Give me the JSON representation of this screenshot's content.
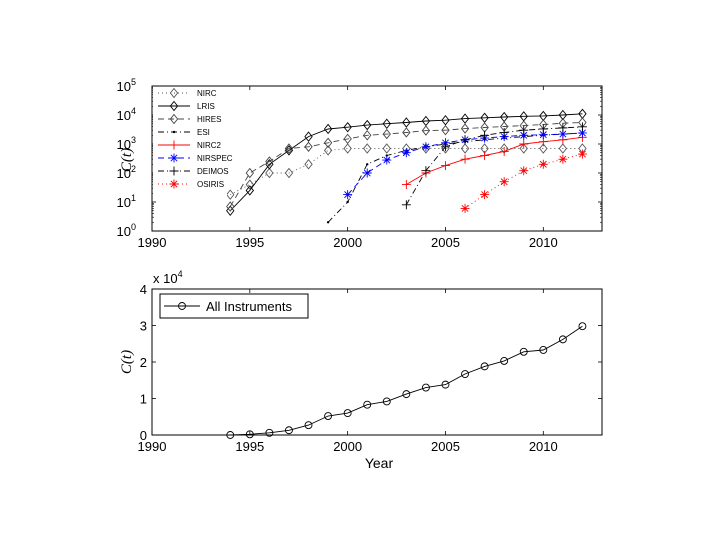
{
  "chart_data": [
    {
      "type": "line",
      "ylabel": "C(t)",
      "yscale": "log",
      "xlim": [
        1990,
        2013
      ],
      "ylim_exponents": [
        0,
        5
      ],
      "x_ticks": [
        "1990",
        "1995",
        "2000",
        "2005",
        "2010"
      ],
      "y_tick_base": "10",
      "y_tick_exponents": [
        "0",
        "1",
        "2",
        "3",
        "4",
        "5"
      ],
      "legend_position": "top-left",
      "series": [
        {
          "name": "NIRC",
          "color": "#555555",
          "marker": "diamond",
          "dash": "1,3",
          "x": [
            1994,
            1995,
            1996,
            1997,
            1998,
            1999,
            2000,
            2001,
            2002,
            2003,
            2004,
            2005,
            2006,
            2007,
            2008,
            2009,
            2010,
            2011,
            2012
          ],
          "y": [
            18,
            40,
            100,
            100,
            200,
            600,
            700,
            700,
            700,
            700,
            700,
            700,
            700,
            700,
            700,
            700,
            700,
            700,
            700
          ]
        },
        {
          "name": "LRIS",
          "color": "#000000",
          "marker": "diamond",
          "dash": "",
          "x": [
            1994,
            1995,
            1996,
            1997,
            1998,
            1999,
            2000,
            2001,
            2002,
            2003,
            2004,
            2005,
            2006,
            2007,
            2008,
            2009,
            2010,
            2011,
            2012
          ],
          "y": [
            5,
            25,
            200,
            600,
            1800,
            3300,
            3800,
            4500,
            5000,
            5500,
            6200,
            6600,
            7500,
            8000,
            8500,
            9000,
            9300,
            10000,
            11000
          ]
        },
        {
          "name": "HIRES",
          "color": "#444444",
          "marker": "diamond",
          "dash": "6,4",
          "x": [
            1994,
            1995,
            1996,
            1997,
            1998,
            1999,
            2000,
            2001,
            2002,
            2003,
            2004,
            2005,
            2006,
            2007,
            2008,
            2009,
            2010,
            2011,
            2012
          ],
          "y": [
            7,
            100,
            250,
            700,
            800,
            1100,
            1500,
            2000,
            2200,
            2500,
            2900,
            3000,
            3400,
            3700,
            4000,
            4300,
            4700,
            5200,
            5500
          ]
        },
        {
          "name": "ESI",
          "color": "#000000",
          "marker": "dot",
          "dash": "6,3,1,3",
          "x": [
            1999,
            2000,
            2001,
            2002,
            2003,
            2004,
            2005,
            2006,
            2007,
            2008,
            2009,
            2010,
            2011,
            2012
          ],
          "y": [
            2,
            10,
            200,
            400,
            600,
            800,
            1000,
            1200,
            1400,
            1600,
            1800,
            2000,
            2200,
            2400
          ]
        },
        {
          "name": "NIRC2",
          "color": "#ff0000",
          "marker": "plus",
          "dash": "",
          "x": [
            2003,
            2004,
            2005,
            2006,
            2007,
            2008,
            2009,
            2010,
            2011,
            2012
          ],
          "y": [
            40,
            100,
            180,
            300,
            400,
            550,
            1000,
            1200,
            1400,
            1700
          ]
        },
        {
          "name": "NIRSPEC",
          "color": "#0000ff",
          "marker": "star",
          "dash": "6,4",
          "x": [
            2000,
            2001,
            2002,
            2003,
            2004,
            2005,
            2006,
            2007,
            2008,
            2009,
            2010,
            2011,
            2012
          ],
          "y": [
            18,
            100,
            280,
            500,
            800,
            1100,
            1400,
            1600,
            1800,
            2000,
            2100,
            2200,
            2400
          ]
        },
        {
          "name": "DEIMOS",
          "color": "#000000",
          "marker": "plus",
          "dash": "6,3,1,3",
          "x": [
            2003,
            2004,
            2005,
            2006,
            2007,
            2008,
            2009,
            2010,
            2011,
            2012
          ],
          "y": [
            8,
            120,
            800,
            1400,
            2000,
            2500,
            3000,
            3300,
            3600,
            3900
          ]
        },
        {
          "name": "OSIRIS",
          "color": "#ff0000",
          "marker": "star",
          "dash": "1,3",
          "x": [
            2006,
            2007,
            2008,
            2009,
            2010,
            2011,
            2012
          ],
          "y": [
            6,
            18,
            50,
            120,
            200,
            300,
            450
          ]
        }
      ]
    },
    {
      "type": "line",
      "xlabel": "Year",
      "ylabel": "C(t)",
      "xlim": [
        1990,
        2013
      ],
      "ylim": [
        0,
        4
      ],
      "y_multiplier_text": "x 10",
      "y_multiplier_exponent": "4",
      "x_ticks": [
        "1990",
        "1995",
        "2000",
        "2005",
        "2010"
      ],
      "y_ticks": [
        "0",
        "1",
        "2",
        "3",
        "4"
      ],
      "legend_position": "top-left",
      "series": [
        {
          "name": "All Instruments",
          "color": "#000000",
          "marker": "circle",
          "dash": "",
          "x": [
            1994,
            1995,
            1996,
            1997,
            1998,
            1999,
            2000,
            2001,
            2002,
            2003,
            2004,
            2005,
            2006,
            2007,
            2008,
            2009,
            2010,
            2011,
            2012
          ],
          "y": [
            0.0,
            0.02,
            0.06,
            0.13,
            0.27,
            0.52,
            0.6,
            0.83,
            0.92,
            1.12,
            1.3,
            1.38,
            1.67,
            1.88,
            2.03,
            2.28,
            2.33,
            2.62,
            2.98
          ]
        }
      ]
    }
  ]
}
